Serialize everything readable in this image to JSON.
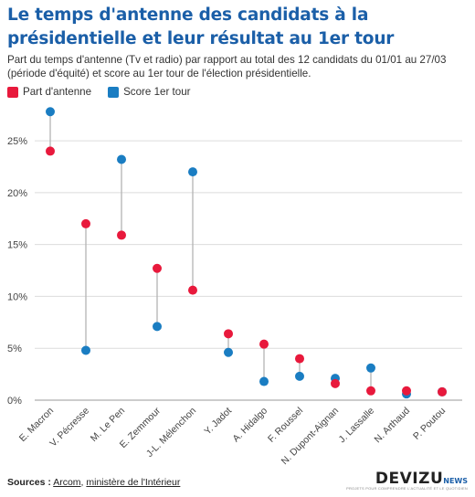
{
  "title": "Le temps d'antenne des candidats à la présidentielle et leur résultat au 1er tour",
  "subtitle": "Part du temps d'antenne (Tv et radio) par rapport au total des 12 candidats du 01/01 au 27/03 (période d'équité) et score au 1er tour de l'élection présidentielle.",
  "colors": {
    "part": "#e8193c",
    "score": "#1a7dc2",
    "connector": "#b3b3b3",
    "grid": "#dcdcdc",
    "title": "#1b5fa8"
  },
  "chart_data": {
    "type": "dumbbell",
    "categories": [
      "E. Macron",
      "V. Pécresse",
      "M. Le Pen",
      "E. Zemmour",
      "J-L. Mélenchon",
      "Y. Jadot",
      "A. Hidalgo",
      "F. Roussel",
      "N. Dupont-Aignan",
      "J. Lassalle",
      "N. Arthaud",
      "P. Poutou"
    ],
    "series": [
      {
        "name": "Part d'antenne",
        "color": "#e8193c",
        "values": [
          24.0,
          17.0,
          15.9,
          12.7,
          10.6,
          6.4,
          5.4,
          4.0,
          1.6,
          0.9,
          0.9,
          0.8
        ]
      },
      {
        "name": "Score 1er tour",
        "color": "#1a7dc2",
        "values": [
          27.8,
          4.8,
          23.2,
          7.1,
          22.0,
          4.6,
          1.8,
          2.3,
          2.1,
          3.1,
          0.6,
          0.8
        ]
      }
    ],
    "y_ticks": [
      "0%",
      "5%",
      "10%",
      "15%",
      "20%",
      "25%"
    ],
    "y_tick_values": [
      0,
      5,
      10,
      15,
      20,
      25
    ],
    "ylim": [
      0,
      28
    ],
    "grid": true,
    "legend_position": "top-left"
  },
  "footer": {
    "label": "Sources :",
    "source_1": "Arcom",
    "separator": ", ",
    "source_2": "ministère de l'Intérieur"
  },
  "logo": {
    "word": "DEVIZU",
    "suffix": "NEWS",
    "tagline": "PROJETS POUR COMPRENDRE L'ACTUALITÉ ET LE QUOTIDIEN"
  }
}
